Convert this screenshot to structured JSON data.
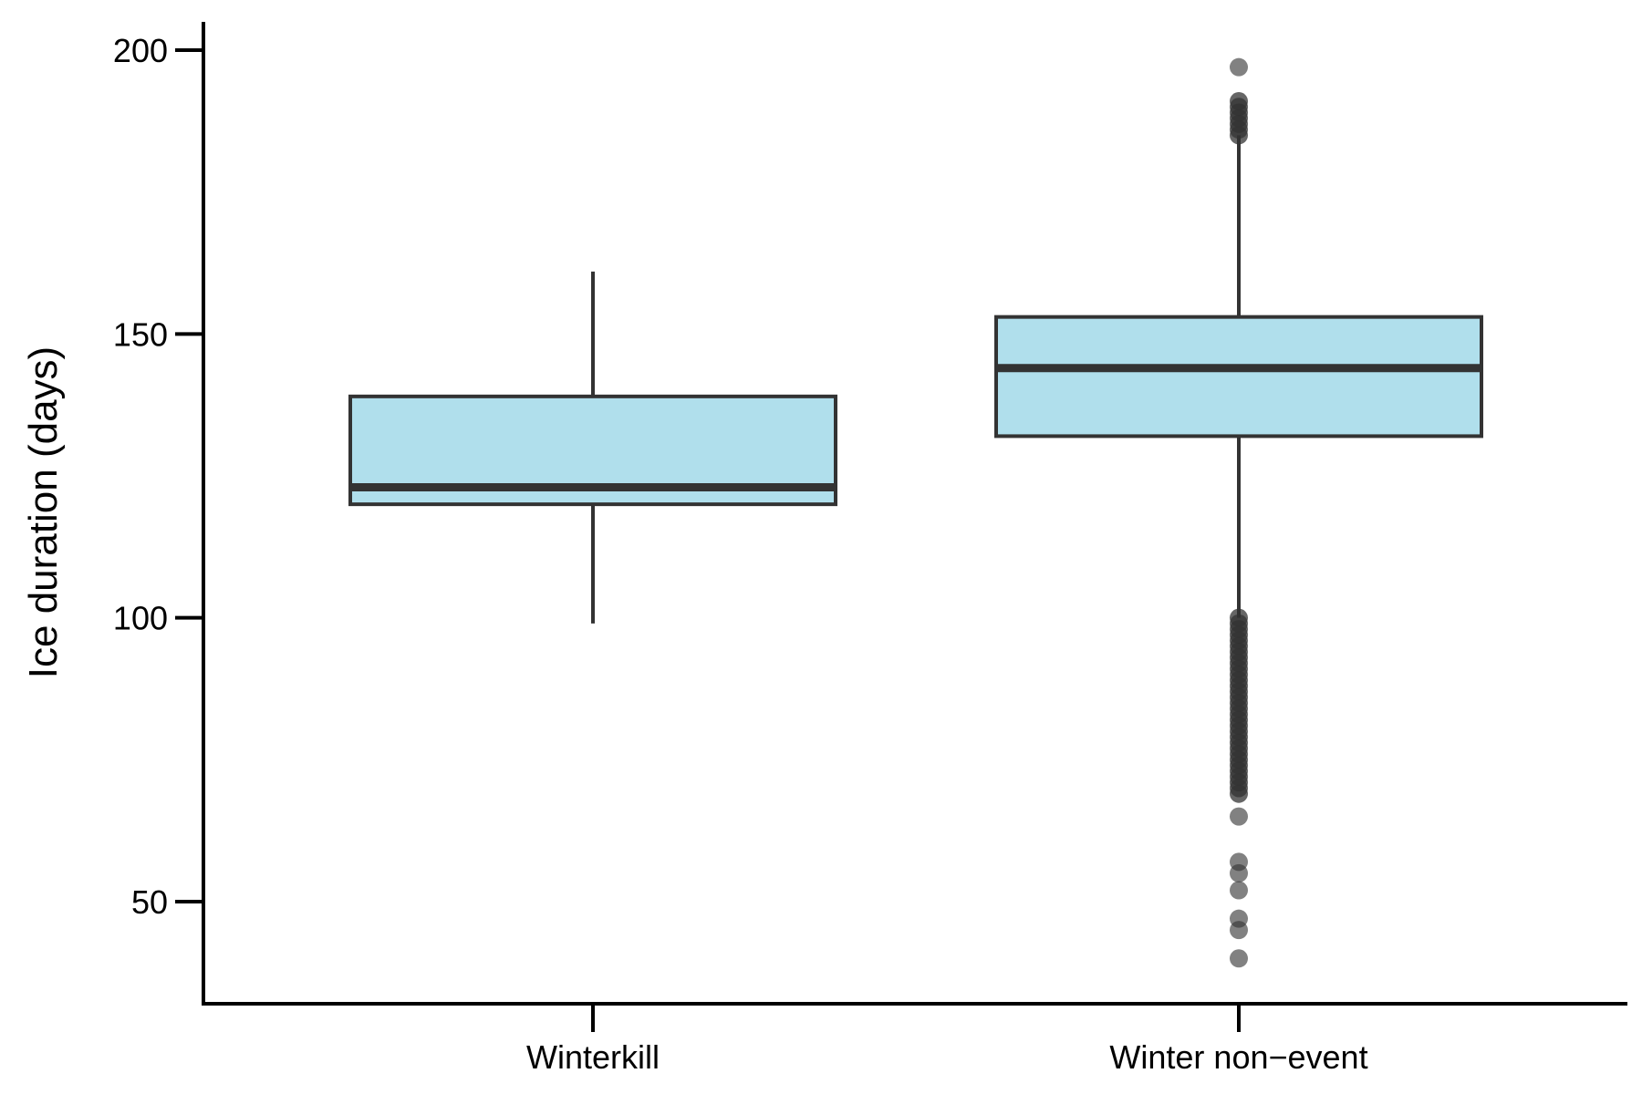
{
  "chart_data": {
    "type": "box",
    "title": "",
    "xlabel": "",
    "ylabel": "Ice duration (days)",
    "ylim": [
      32,
      205
    ],
    "yticks": [
      50,
      100,
      150,
      200
    ],
    "categories": [
      "Winterkill",
      "Winter non−event"
    ],
    "colors": {
      "box_fill": "#b0dfec",
      "box_stroke": "#333333",
      "outlier": "#333333",
      "axis": "#000000"
    },
    "boxes": [
      {
        "category": "Winterkill",
        "whisker_low": 99,
        "q1": 120,
        "median": 123,
        "q3": 139,
        "whisker_high": 161,
        "outliers": []
      },
      {
        "category": "Winter non−event",
        "whisker_low": 100,
        "q1": 132,
        "median": 144,
        "q3": 153,
        "whisker_high": 185,
        "outliers": [
          197,
          191,
          190,
          189,
          188,
          187,
          186,
          185,
          100,
          99,
          98,
          97,
          96,
          95,
          94,
          93,
          92,
          91,
          90,
          89,
          88,
          87,
          86,
          85,
          84,
          83,
          82,
          81,
          80,
          79,
          78,
          77,
          76,
          75,
          74,
          73,
          72,
          71,
          70,
          69,
          65,
          57,
          55,
          52,
          47,
          45,
          40
        ]
      }
    ]
  }
}
